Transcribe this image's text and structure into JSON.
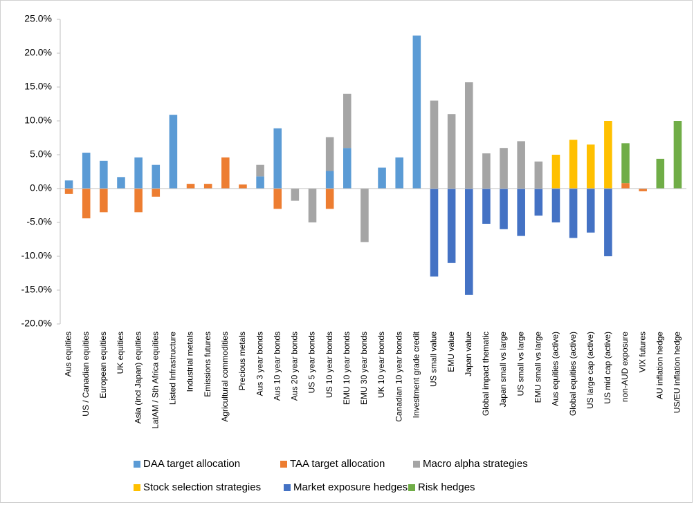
{
  "chart_data": {
    "type": "stacked_bar",
    "categories": [
      "Aus equities",
      "US / Canadian equities",
      "European equities",
      "UK equities",
      "Asia (incl Japan) equities",
      "LatAM / Sth Africa equities",
      "Listed Infrastructure",
      "Industrial metals",
      "Emissions futures",
      "Agricultural commodities",
      "Precious metals",
      "Aus 3 year bonds",
      "Aus 10 year bonds",
      "Aus 20 year bonds",
      "US 5 year bonds",
      "US 10 year bonds",
      "EMU 10 year bonds",
      "EMU 30 year bonds",
      "UK 10 year bonds",
      "Canadian 10 year bonds",
      "Investment grade credit",
      "US small value",
      "EMU value",
      "Japan value",
      "Global impact thematic",
      "Japan small vs large",
      "US small vs large",
      "EMU small vs large",
      "Aus equities (active)",
      "Global equities (active)",
      "US large cap (active)",
      "US mid cap (active)",
      "non-AUD exposure",
      "VIX futures",
      "AU inflation hedge",
      "US/EU inflation hedge"
    ],
    "series": [
      {
        "name": "DAA target allocation",
        "color": "#5b9bd5",
        "values": [
          1.2,
          5.3,
          4.1,
          1.7,
          4.6,
          3.5,
          10.9,
          null,
          null,
          null,
          null,
          1.8,
          8.9,
          null,
          null,
          2.6,
          6.0,
          null,
          3.1,
          4.6,
          22.6,
          null,
          null,
          null,
          null,
          null,
          null,
          null,
          null,
          null,
          null,
          null,
          null,
          null,
          null,
          null
        ]
      },
      {
        "name": "TAA target allocation",
        "color": "#ed7d31",
        "values": [
          -0.8,
          -4.4,
          -3.5,
          null,
          -3.5,
          -1.2,
          null,
          0.7,
          0.7,
          4.6,
          0.6,
          null,
          -3.0,
          null,
          null,
          -3.0,
          null,
          null,
          null,
          null,
          null,
          null,
          null,
          null,
          null,
          null,
          null,
          null,
          null,
          null,
          null,
          null,
          0.8,
          -0.4,
          null,
          null
        ]
      },
      {
        "name": "Macro alpha strategies",
        "color": "#a5a5a5",
        "values": [
          null,
          null,
          null,
          null,
          null,
          null,
          null,
          null,
          null,
          null,
          null,
          1.7,
          null,
          -1.8,
          -5.0,
          5.0,
          8.0,
          -7.9,
          null,
          null,
          null,
          13.0,
          11.0,
          15.7,
          5.2,
          6.0,
          7.0,
          4.0,
          null,
          null,
          null,
          null,
          null,
          null,
          null,
          null
        ]
      },
      {
        "name": "Stock selection strategies",
        "color": "#ffc000",
        "values": [
          null,
          null,
          null,
          null,
          null,
          null,
          null,
          null,
          null,
          null,
          null,
          null,
          null,
          null,
          null,
          null,
          null,
          null,
          null,
          null,
          null,
          null,
          null,
          null,
          null,
          null,
          null,
          null,
          5.0,
          7.2,
          6.5,
          10.0,
          null,
          null,
          null,
          null
        ]
      },
      {
        "name": "Market exposure hedges",
        "color": "#4472c4",
        "values": [
          null,
          null,
          null,
          null,
          null,
          null,
          null,
          null,
          null,
          null,
          null,
          null,
          null,
          null,
          null,
          null,
          null,
          null,
          null,
          null,
          null,
          -13.0,
          -11.0,
          -15.7,
          -5.2,
          -6.0,
          -7.0,
          -4.0,
          -5.0,
          -7.3,
          -6.5,
          -10.0,
          null,
          null,
          null,
          null
        ]
      },
      {
        "name": "Risk hedges",
        "color": "#70ad47",
        "values": [
          null,
          null,
          null,
          null,
          null,
          null,
          null,
          null,
          null,
          null,
          null,
          null,
          null,
          null,
          null,
          null,
          null,
          null,
          null,
          null,
          null,
          null,
          null,
          null,
          null,
          null,
          null,
          null,
          null,
          null,
          null,
          null,
          5.9,
          null,
          4.4,
          10.0
        ]
      }
    ],
    "ylim": [
      -20,
      25
    ],
    "yticks": [
      {
        "value": -20,
        "label": "-20.0%"
      },
      {
        "value": -15,
        "label": "-15.0%"
      },
      {
        "value": -10,
        "label": "-10.0%"
      },
      {
        "value": -5,
        "label": "-5.0%"
      },
      {
        "value": 0,
        "label": "0.0%"
      },
      {
        "value": 5,
        "label": "5.0%"
      },
      {
        "value": 10,
        "label": "10.0%"
      },
      {
        "value": 15,
        "label": "15.0%"
      },
      {
        "value": 20,
        "label": "20.0%"
      },
      {
        "value": 25,
        "label": "25.0%"
      }
    ],
    "legend": "bottom"
  }
}
